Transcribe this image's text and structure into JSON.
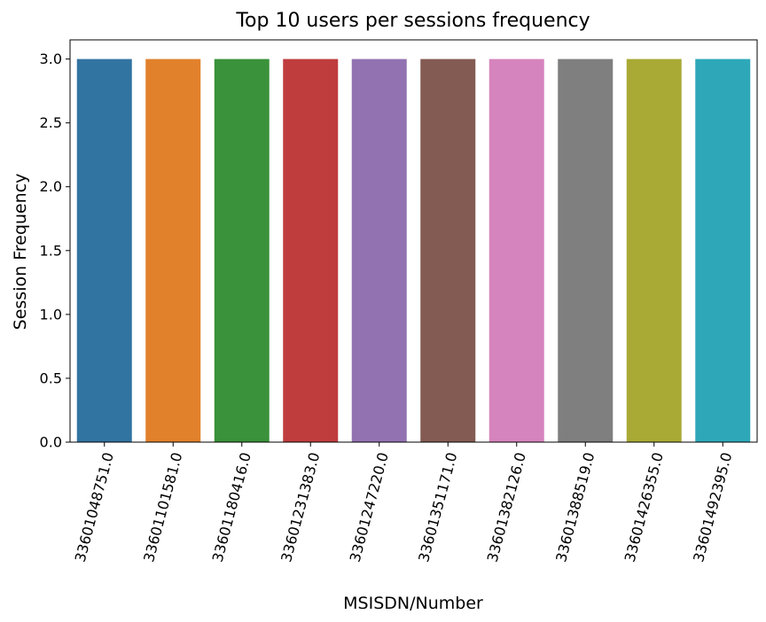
{
  "chart_data": {
    "type": "bar",
    "title": "Top 10 users per sessions frequency",
    "xlabel": "MSISDN/Number",
    "ylabel": "Session Frequency",
    "categories": [
      "33601048751.0",
      "33601101581.0",
      "33601180416.0",
      "33601231383.0",
      "33601247220.0",
      "33601351171.0",
      "33601382126.0",
      "33601388519.0",
      "33601426355.0",
      "33601492395.0"
    ],
    "values": [
      3.0,
      3.0,
      3.0,
      3.0,
      3.0,
      3.0,
      3.0,
      3.0,
      3.0,
      3.0
    ],
    "ylim": [
      0,
      3.15
    ],
    "yticks": [
      "0.0",
      "0.5",
      "1.0",
      "1.5",
      "2.0",
      "2.5",
      "3.0"
    ],
    "ytick_values": [
      0,
      0.5,
      1.0,
      1.5,
      2.0,
      2.5,
      3.0
    ],
    "colors": [
      "#3274a1",
      "#e1812c",
      "#3a923a",
      "#c03d3e",
      "#9372b2",
      "#845b53",
      "#d684bd",
      "#7f7f7f",
      "#a9aa35",
      "#2ea8b9"
    ],
    "grid": false,
    "legend": "none"
  }
}
